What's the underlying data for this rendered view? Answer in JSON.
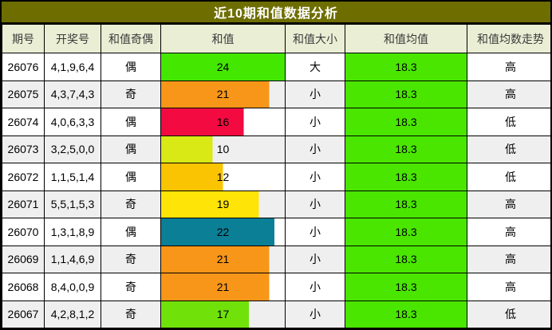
{
  "title": "近10期和值数据分析",
  "colors": {
    "title_bg": "#6E6E00",
    "title_text": "#FFFFFF",
    "header_bg": "#E9EED4",
    "header_text": "#3A3A3A",
    "row_bg": "#FFFFFF",
    "row_alt_bg": "#EFEFEF",
    "mean_bg": "#4AE600"
  },
  "bar_max": 24,
  "columns": [
    "期号",
    "开奖号",
    "和值奇偶",
    "和值",
    "和值大小",
    "和值均值",
    "和值均数走势"
  ],
  "rows": [
    {
      "period": "26076",
      "numbers": "4,1,9,6,4",
      "parity": "偶",
      "sum": 24,
      "bar_color": "#44E700",
      "size": "大",
      "mean": "18.3",
      "trend": "高"
    },
    {
      "period": "26075",
      "numbers": "4,3,7,4,3",
      "parity": "奇",
      "sum": 21,
      "bar_color": "#F89619",
      "size": "小",
      "mean": "18.3",
      "trend": "高"
    },
    {
      "period": "26074",
      "numbers": "4,0,6,3,3",
      "parity": "偶",
      "sum": 16,
      "bar_color": "#F20A40",
      "size": "小",
      "mean": "18.3",
      "trend": "低"
    },
    {
      "period": "26073",
      "numbers": "3,2,5,0,0",
      "parity": "偶",
      "sum": 10,
      "bar_color": "#D8E916",
      "size": "小",
      "mean": "18.3",
      "trend": "低"
    },
    {
      "period": "26072",
      "numbers": "1,1,5,1,4",
      "parity": "偶",
      "sum": 12,
      "bar_color": "#FAC402",
      "size": "小",
      "mean": "18.3",
      "trend": "低"
    },
    {
      "period": "26071",
      "numbers": "5,5,1,5,3",
      "parity": "奇",
      "sum": 19,
      "bar_color": "#FFE407",
      "size": "小",
      "mean": "18.3",
      "trend": "高"
    },
    {
      "period": "26070",
      "numbers": "1,3,1,8,9",
      "parity": "偶",
      "sum": 22,
      "bar_color": "#0A7F96",
      "size": "小",
      "mean": "18.3",
      "trend": "高"
    },
    {
      "period": "26069",
      "numbers": "1,1,4,6,9",
      "parity": "奇",
      "sum": 21,
      "bar_color": "#F89619",
      "size": "小",
      "mean": "18.3",
      "trend": "高"
    },
    {
      "period": "26068",
      "numbers": "8,4,0,0,9",
      "parity": "奇",
      "sum": 21,
      "bar_color": "#F89619",
      "size": "小",
      "mean": "18.3",
      "trend": "高"
    },
    {
      "period": "26067",
      "numbers": "4,2,8,1,2",
      "parity": "奇",
      "sum": 17,
      "bar_color": "#70E20A",
      "size": "小",
      "mean": "18.3",
      "trend": "低"
    }
  ]
}
